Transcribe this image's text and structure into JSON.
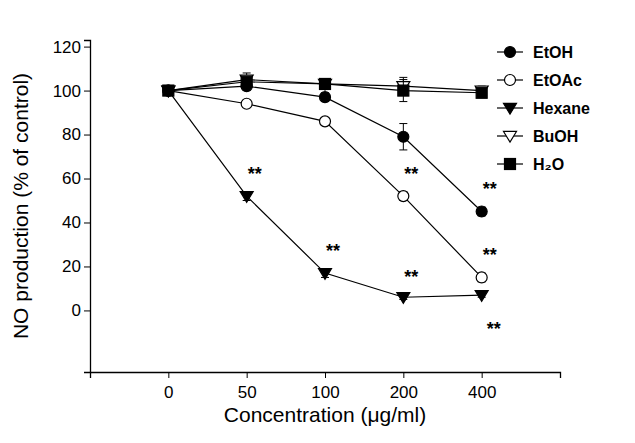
{
  "chart_data": {
    "type": "line",
    "x_label": "Concentration (μg/ml)",
    "y_label": "NO production (% of control)",
    "categories": [
      "0",
      "50",
      "100",
      "200",
      "400"
    ],
    "ylim": [
      -28,
      123
    ],
    "yticks": [
      0,
      20,
      40,
      60,
      80,
      100,
      120
    ],
    "legend": "top-right",
    "series": [
      {
        "name": "EtOH",
        "color": "#000000",
        "marker": "circle",
        "values": [
          100,
          102,
          97,
          79,
          45
        ],
        "errors": [
          0,
          2,
          2,
          6,
          2
        ]
      },
      {
        "name": "EtOAc",
        "color": "#000000",
        "marker": "circle-open",
        "values": [
          100,
          94,
          86,
          52,
          15
        ],
        "errors": [
          0,
          1,
          1,
          2,
          2
        ]
      },
      {
        "name": "Hexane",
        "color": "#000000",
        "marker": "triangle-down",
        "values": [
          100,
          52,
          17,
          6,
          7
        ],
        "errors": [
          0,
          2,
          2,
          1,
          1
        ]
      },
      {
        "name": "BuOH",
        "color": "#000000",
        "marker": "triangle-down-open",
        "values": [
          100,
          105,
          103,
          102,
          100
        ],
        "errors": [
          0,
          3,
          1,
          4,
          2
        ]
      },
      {
        "name": "H₂O",
        "color": "#000000",
        "marker": "square",
        "values": [
          100,
          104,
          103,
          100,
          99
        ],
        "errors": [
          0,
          2,
          1,
          5,
          1
        ]
      }
    ],
    "annotations": [
      {
        "text": "**",
        "series": "Hexane",
        "category": "50",
        "position": "above"
      },
      {
        "text": "**",
        "series": "Hexane",
        "category": "100",
        "position": "above"
      },
      {
        "text": "**",
        "series": "Hexane",
        "category": "200",
        "position": "above"
      },
      {
        "text": "**",
        "series": "Hexane",
        "category": "400",
        "position": "below"
      },
      {
        "text": "**",
        "series": "EtOAc",
        "category": "200",
        "position": "above"
      },
      {
        "text": "**",
        "series": "EtOAc",
        "category": "400",
        "position": "above"
      },
      {
        "text": "**",
        "series": "EtOH",
        "category": "400",
        "position": "above"
      }
    ]
  }
}
